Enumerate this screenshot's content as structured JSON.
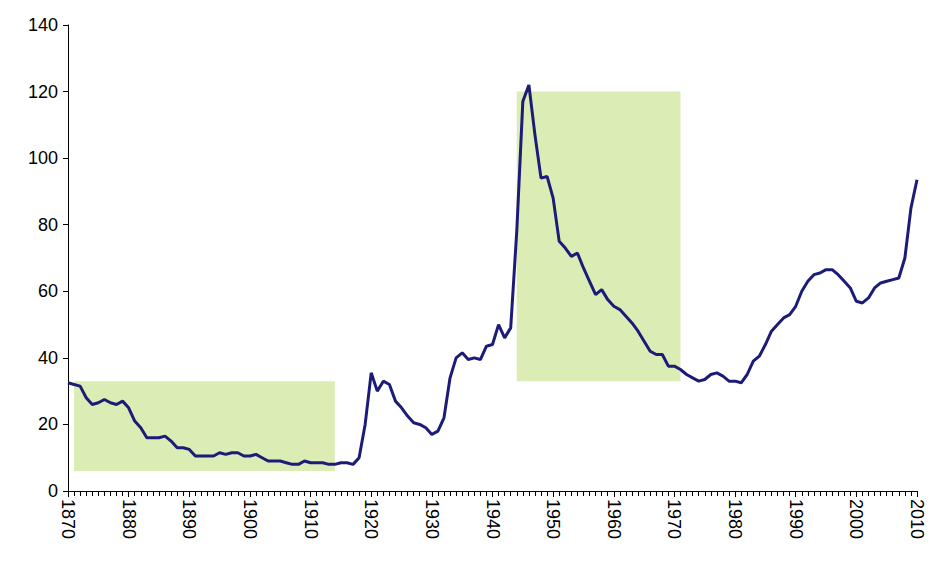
{
  "chart_data": {
    "type": "line",
    "x": [
      1870,
      1871,
      1872,
      1873,
      1874,
      1875,
      1876,
      1877,
      1878,
      1879,
      1880,
      1881,
      1882,
      1883,
      1884,
      1885,
      1886,
      1887,
      1888,
      1889,
      1890,
      1891,
      1892,
      1893,
      1894,
      1895,
      1896,
      1897,
      1898,
      1899,
      1900,
      1901,
      1902,
      1903,
      1904,
      1905,
      1906,
      1907,
      1908,
      1909,
      1910,
      1911,
      1912,
      1913,
      1914,
      1915,
      1916,
      1917,
      1918,
      1919,
      1920,
      1921,
      1922,
      1923,
      1924,
      1925,
      1926,
      1927,
      1928,
      1929,
      1930,
      1931,
      1932,
      1933,
      1934,
      1935,
      1936,
      1937,
      1938,
      1939,
      1940,
      1941,
      1942,
      1943,
      1944,
      1945,
      1946,
      1947,
      1948,
      1949,
      1950,
      1951,
      1952,
      1953,
      1954,
      1955,
      1956,
      1957,
      1958,
      1959,
      1960,
      1961,
      1962,
      1963,
      1964,
      1965,
      1966,
      1967,
      1968,
      1969,
      1970,
      1971,
      1972,
      1973,
      1974,
      1975,
      1976,
      1977,
      1978,
      1979,
      1980,
      1981,
      1982,
      1983,
      1984,
      1985,
      1986,
      1987,
      1988,
      1989,
      1990,
      1991,
      1992,
      1993,
      1994,
      1995,
      1996,
      1997,
      1998,
      1999,
      2000,
      2001,
      2002,
      2003,
      2004,
      2005,
      2006,
      2007,
      2008,
      2009,
      2010
    ],
    "values": [
      32.5,
      32,
      31.5,
      28,
      26,
      26.5,
      27.5,
      26.5,
      26,
      27,
      25,
      21,
      19,
      16,
      16,
      16,
      16.5,
      15,
      13,
      13,
      12.5,
      10.5,
      10.5,
      10.5,
      10.5,
      11.5,
      11,
      11.5,
      11.5,
      10.5,
      10.5,
      11,
      10,
      9,
      9,
      9,
      8.5,
      8,
      8,
      9,
      8.5,
      8.5,
      8.5,
      8,
      8,
      8.5,
      8.5,
      8,
      10,
      20,
      35.5,
      30,
      33,
      32,
      27,
      25,
      22.5,
      20.5,
      20,
      19,
      17,
      18,
      22,
      34,
      40,
      41.5,
      39.5,
      40,
      39.5,
      43.5,
      44,
      50,
      46,
      49,
      78,
      117,
      122,
      107,
      94,
      94.5,
      88,
      75,
      73,
      70.5,
      71.5,
      67,
      63,
      59,
      60.5,
      57.5,
      55.5,
      54.5,
      52.5,
      50.5,
      48,
      45,
      42,
      41,
      41,
      37.5,
      37.5,
      36.5,
      35,
      34,
      33,
      33.5,
      35,
      35.5,
      34.5,
      33,
      33,
      32.5,
      35,
      39,
      40.5,
      44,
      48,
      50,
      52,
      53,
      55.5,
      60,
      63,
      65,
      65.5,
      66.5,
      66.5,
      65,
      63,
      61,
      57,
      56.5,
      58,
      61,
      62.5,
      63,
      63.5,
      64,
      70,
      85,
      93.5
    ],
    "color": "#1c1c78",
    "xlim": [
      1870,
      2010
    ],
    "xticks": [
      1870,
      1880,
      1890,
      1900,
      1910,
      1920,
      1930,
      1940,
      1950,
      1960,
      1970,
      1980,
      1990,
      2000,
      2010
    ],
    "ylim": [
      0,
      140
    ],
    "yticks": [
      0,
      20,
      40,
      60,
      80,
      100,
      120,
      140
    ],
    "grid": false,
    "shaded_areas": [
      {
        "x": [
          1871,
          1914
        ],
        "y": [
          6,
          33
        ]
      },
      {
        "x": [
          1944,
          1971
        ],
        "y": [
          33,
          120
        ]
      }
    ]
  }
}
